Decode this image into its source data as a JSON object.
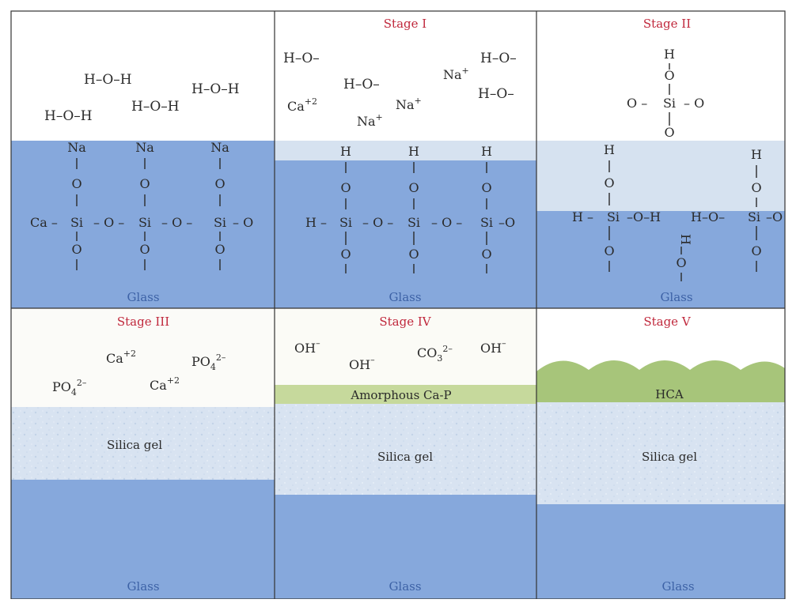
{
  "colors": {
    "glass": "#86a8dc",
    "glass_light": "#d6e2f0",
    "silica_gel": "#d8e3f1",
    "ca_p_layer": "#c6d99c",
    "hca_layer": "#a7c57a",
    "stage_text": "#c0283c",
    "glass_text": "#3d62a6",
    "border": "#333333"
  },
  "panels": [
    {
      "stage": "",
      "solution": [
        "H–O–H",
        "H–O–H",
        "H–O–H",
        "H–O–H"
      ],
      "surface": {
        "cations": [
          "Na",
          "Na",
          "Na"
        ],
        "oxygens": [
          "O",
          "O",
          "O",
          "O",
          "O",
          "O"
        ],
        "si": [
          "Si",
          "Si",
          "Si"
        ],
        "chain_left": "Ca –",
        "chain_link": "– O –",
        "chain_end": "– O"
      },
      "layer": "Glass"
    },
    {
      "stage": "Stage I",
      "solution": {
        "hydroxyl": [
          "H–O–",
          "H–O–",
          "H–O–",
          "H–O–"
        ],
        "ions": [
          "Na",
          "Na",
          "Na",
          "Ca"
        ],
        "na_charge": "+",
        "ca_charge": "+2"
      },
      "surface": {
        "cations": [
          "H",
          "H",
          "H"
        ],
        "oxygens": [
          "O",
          "O",
          "O",
          "O",
          "O",
          "O"
        ],
        "si": [
          "Si",
          "Si",
          "Si"
        ],
        "chain_left": "H –",
        "chain_link": "– O –",
        "chain_end": "–O"
      },
      "layer": "Glass"
    },
    {
      "stage": "Stage II",
      "detached": {
        "h": "H",
        "o_top": "O",
        "o_left": "O –",
        "si": "Si",
        "o_right": "– O",
        "o_bottom": "O"
      },
      "surface": {
        "h_left": "H",
        "o_left_top": "O",
        "h_right": "H",
        "o_right_top": "O",
        "left_group": "H –",
        "si_left": "Si",
        "left_oh": "–O–H",
        "right_group": "H–O–",
        "si_right": "Si",
        "right_end": "–O",
        "middle_h": "H",
        "middle_o_top": "O",
        "middle_o_bottom": "O",
        "o_left_bottom": "O",
        "o_right_bottom": "O"
      },
      "layer": "Glass"
    },
    {
      "stage": "Stage III",
      "ions": {
        "ca": "Ca",
        "ca_charge": "+2",
        "po": "PO",
        "po_sub": "4",
        "po_charge": "2–"
      },
      "gel": "Silica gel",
      "layer": "Glass"
    },
    {
      "stage": "Stage IV",
      "ions": {
        "oh": "OH",
        "oh_charge": "–",
        "co": "CO",
        "co_sub": "3",
        "co_charge": "2–"
      },
      "deposit": "Amorphous Ca-P",
      "gel": "Silica gel",
      "layer": "Glass"
    },
    {
      "stage": "Stage V",
      "deposit": "HCA",
      "gel": "Silica gel",
      "layer": "Glass"
    }
  ]
}
